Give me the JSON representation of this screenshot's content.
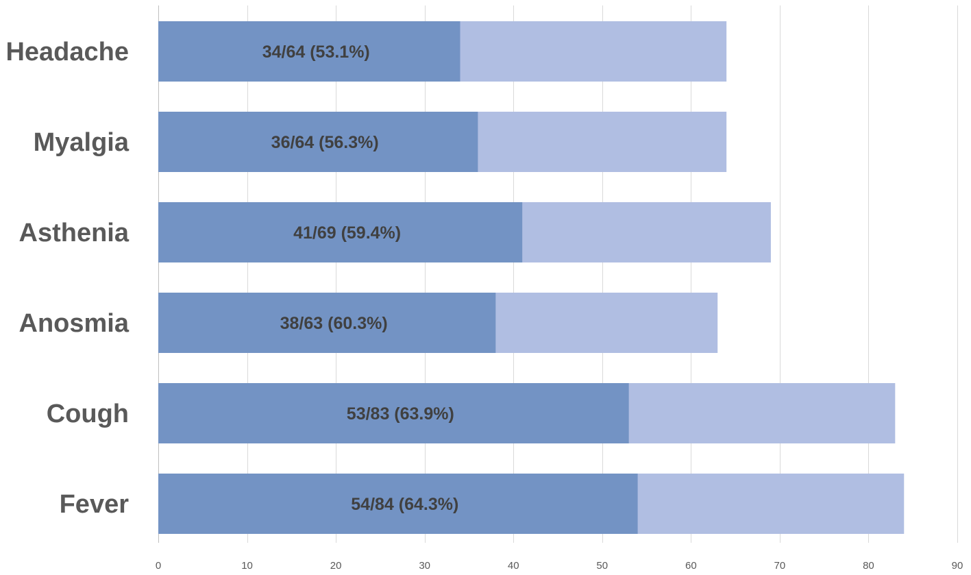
{
  "chart_data": {
    "type": "bar",
    "orientation": "horizontal",
    "stacked_overlay": true,
    "categories": [
      "Headache",
      "Myalgia",
      "Asthenia",
      "Anosmia",
      "Cough",
      "Fever"
    ],
    "series": [
      {
        "values": [
          64,
          64,
          69,
          63,
          83,
          84
        ],
        "color": "#b0bee2"
      },
      {
        "values": [
          34,
          36,
          41,
          38,
          53,
          54
        ],
        "color": "#7393c4"
      }
    ],
    "data_labels": [
      "34/64 (53.1%)",
      "36/64 (56.3%)",
      "41/69 (59.4%)",
      "38/63 (60.3%)",
      "53/83 (63.9%)",
      "54/84 (64.3%)"
    ],
    "x_ticks": [
      "0",
      "10",
      "20",
      "30",
      "40",
      "50",
      "60",
      "70",
      "80",
      "90"
    ],
    "xlim": [
      0,
      90
    ],
    "grid": true,
    "legend": "none"
  }
}
